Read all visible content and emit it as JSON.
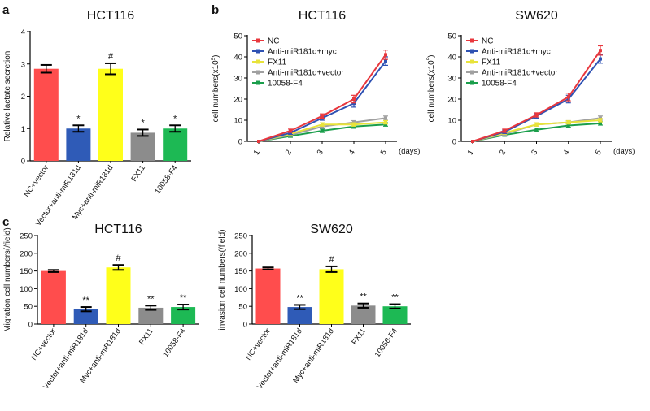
{
  "panel_labels": [
    "a",
    "b",
    "c"
  ],
  "chart_data": [
    {
      "id": "a",
      "type": "bar",
      "title": "HCT116",
      "xlabel": "",
      "ylabel": "Relative lactate secretion",
      "ylim": [
        0,
        4
      ],
      "yticks": [
        0,
        1,
        2,
        3,
        4
      ],
      "categories": [
        "NC+vector",
        "Vector+anti-miR181d",
        "Myc+anti-miR181d",
        "FX11",
        "10058-F4"
      ],
      "values": [
        2.85,
        1.0,
        2.85,
        0.87,
        1.0
      ],
      "errors": [
        0.12,
        0.1,
        0.17,
        0.1,
        0.1
      ],
      "annotations": [
        "",
        "*",
        "#",
        "*",
        "*"
      ],
      "colors": [
        "#ff4d4d",
        "#2f5bb7",
        "#ffff1a",
        "#8c8c8c",
        "#1db954"
      ]
    },
    {
      "id": "b1",
      "type": "line",
      "title": "HCT116",
      "xlabel": "(days)",
      "ylabel": "cell numbers(x10",
      "ylabel_sup": "5",
      "ylabel_end": ")",
      "x": [
        1,
        2,
        3,
        4,
        5
      ],
      "ylim": [
        0,
        50
      ],
      "yticks": [
        0,
        10,
        20,
        30,
        40,
        50
      ],
      "series": [
        {
          "name": "NC",
          "color": "#e8373d",
          "values": [
            0,
            5,
            12,
            20,
            41
          ],
          "errors": [
            0,
            0.8,
            1,
            1.8,
            2.2
          ]
        },
        {
          "name": "Anti-miR181d+myc",
          "color": "#2f52b3",
          "values": [
            0,
            4,
            11,
            18,
            38
          ],
          "errors": [
            0,
            0.8,
            1,
            1.8,
            2
          ]
        },
        {
          "name": "FX11",
          "color": "#e8e33a",
          "values": [
            0,
            3.5,
            8,
            8,
            9
          ],
          "errors": [
            0,
            0.6,
            0.8,
            0.8,
            0.8
          ]
        },
        {
          "name": "Anti-miR181d+vector",
          "color": "#a0a0a0",
          "values": [
            0,
            3,
            7,
            9,
            11
          ],
          "errors": [
            0,
            0.6,
            0.8,
            0.8,
            1
          ]
        },
        {
          "name": "10058-F4",
          "color": "#1a9e4b",
          "values": [
            0,
            2.5,
            5,
            7,
            8
          ],
          "errors": [
            0,
            0.6,
            0.8,
            0.8,
            0.8
          ]
        }
      ]
    },
    {
      "id": "b2",
      "type": "line",
      "title": "SW620",
      "xlabel": "(days)",
      "ylabel": "cell numbers(x10",
      "ylabel_sup": "5",
      "ylabel_end": ")",
      "x": [
        1,
        2,
        3,
        4,
        5
      ],
      "ylim": [
        0,
        50
      ],
      "yticks": [
        0,
        10,
        20,
        30,
        40,
        50
      ],
      "series": [
        {
          "name": "NC",
          "color": "#e8373d",
          "values": [
            0,
            5,
            12.5,
            21,
            43
          ],
          "errors": [
            0,
            0.8,
            1,
            1.8,
            2.2
          ]
        },
        {
          "name": "Anti-miR181d+myc",
          "color": "#2f52b3",
          "values": [
            0,
            4.5,
            12,
            20,
            39
          ],
          "errors": [
            0,
            0.8,
            1,
            1.8,
            2
          ]
        },
        {
          "name": "FX11",
          "color": "#e8e33a",
          "values": [
            0,
            4,
            8,
            9,
            10
          ],
          "errors": [
            0,
            0.6,
            0.8,
            0.8,
            0.8
          ]
        },
        {
          "name": "Anti-miR181d+vector",
          "color": "#a0a0a0",
          "values": [
            0,
            3.5,
            8,
            9,
            11
          ],
          "errors": [
            0,
            0.6,
            0.8,
            0.8,
            1
          ]
        },
        {
          "name": "10058-F4",
          "color": "#1a9e4b",
          "values": [
            0,
            3,
            5.5,
            7.5,
            8.5
          ],
          "errors": [
            0,
            0.6,
            0.8,
            0.8,
            0.8
          ]
        }
      ]
    },
    {
      "id": "c1",
      "type": "bar",
      "title": "HCT116",
      "xlabel": "",
      "ylabel": "Migration cell numbers(/field)",
      "ylim": [
        0,
        250
      ],
      "yticks": [
        0,
        50,
        100,
        150,
        200,
        250
      ],
      "categories": [
        "NC+vector",
        "Vector+anti-miR181d",
        "Myc+anti-miR181d",
        "FX11",
        "10058-F4"
      ],
      "values": [
        150,
        42,
        160,
        46,
        48
      ],
      "errors": [
        3,
        6,
        7,
        6,
        7
      ],
      "annotations": [
        "",
        "**",
        "#",
        "**",
        "**"
      ],
      "colors": [
        "#ff4d4d",
        "#2f5bb7",
        "#ffff1a",
        "#8c8c8c",
        "#1db954"
      ]
    },
    {
      "id": "c2",
      "type": "bar",
      "title": "SW620",
      "xlabel": "",
      "ylabel": "invasion cell numbers(/field)",
      "ylim": [
        0,
        250
      ],
      "yticks": [
        0,
        50,
        100,
        150,
        200,
        250
      ],
      "categories": [
        "NC+vector",
        "Vector+anti-miR181d",
        "Myc+anti-miR181d",
        "FX11",
        "10058-F4"
      ],
      "values": [
        157,
        48,
        155,
        52,
        50
      ],
      "errors": [
        3,
        6,
        8,
        6,
        6
      ],
      "annotations": [
        "",
        "**",
        "#",
        "**",
        "**"
      ],
      "colors": [
        "#ff4d4d",
        "#2f5bb7",
        "#ffff1a",
        "#8c8c8c",
        "#1db954"
      ]
    }
  ]
}
